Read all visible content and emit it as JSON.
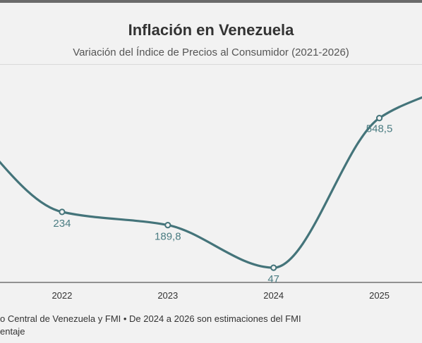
{
  "header": {
    "title": "Inflación en Venezuela",
    "subtitle": "Variación del Índice de Precios al Consumidor (2021-2026)"
  },
  "footer": {
    "source_fragment": "o Central de Venezuela y FMI • De 2024 a 2026 son estimaciones del FMI",
    "unit_fragment": "entaje"
  },
  "chart_data": {
    "type": "line",
    "title": "Inflación en Venezuela",
    "subtitle": "Variación del Índice de Precios al Consumidor (2021-2026)",
    "categories": [
      "2022",
      "2023",
      "2024",
      "2025"
    ],
    "values": [
      234,
      189.8,
      47,
      548.5
    ],
    "data_labels": [
      "234",
      "189,8",
      "47",
      "548,5"
    ],
    "x_range": [
      2021.3,
      2025.55
    ],
    "y_range": [
      0,
      720
    ],
    "line_color": "#44747a",
    "label_color": "#4a7c82",
    "grid": false,
    "legend": "none"
  }
}
